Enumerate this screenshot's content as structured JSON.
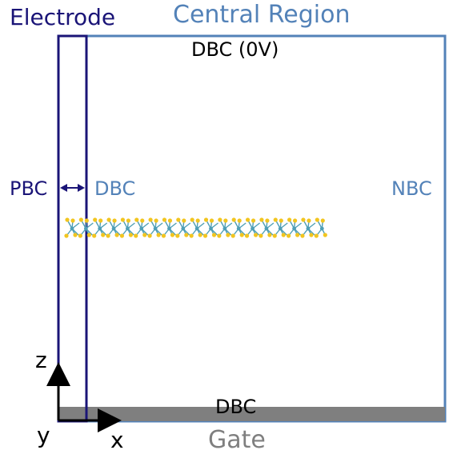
{
  "labels": {
    "electrode": "Electrode",
    "central_region": "Central Region",
    "dbc_top": "DBC (0V)",
    "pbc": "PBC",
    "dbc_left": "DBC",
    "nbc": "NBC",
    "dbc_bottom": "DBC",
    "gate": "Gate",
    "axis_z": "z",
    "axis_y": "y",
    "axis_x": "x"
  },
  "colors": {
    "electrode": "#1a1477",
    "central_region": "#5382b8",
    "gate": "#7f7f7f",
    "sulfur_atom": "#f2c51f",
    "metal_atom": "#4f9fb6",
    "bond": "#4f9fb6",
    "text_default": "#000000"
  },
  "molecule": {
    "unit_count": 19
  }
}
